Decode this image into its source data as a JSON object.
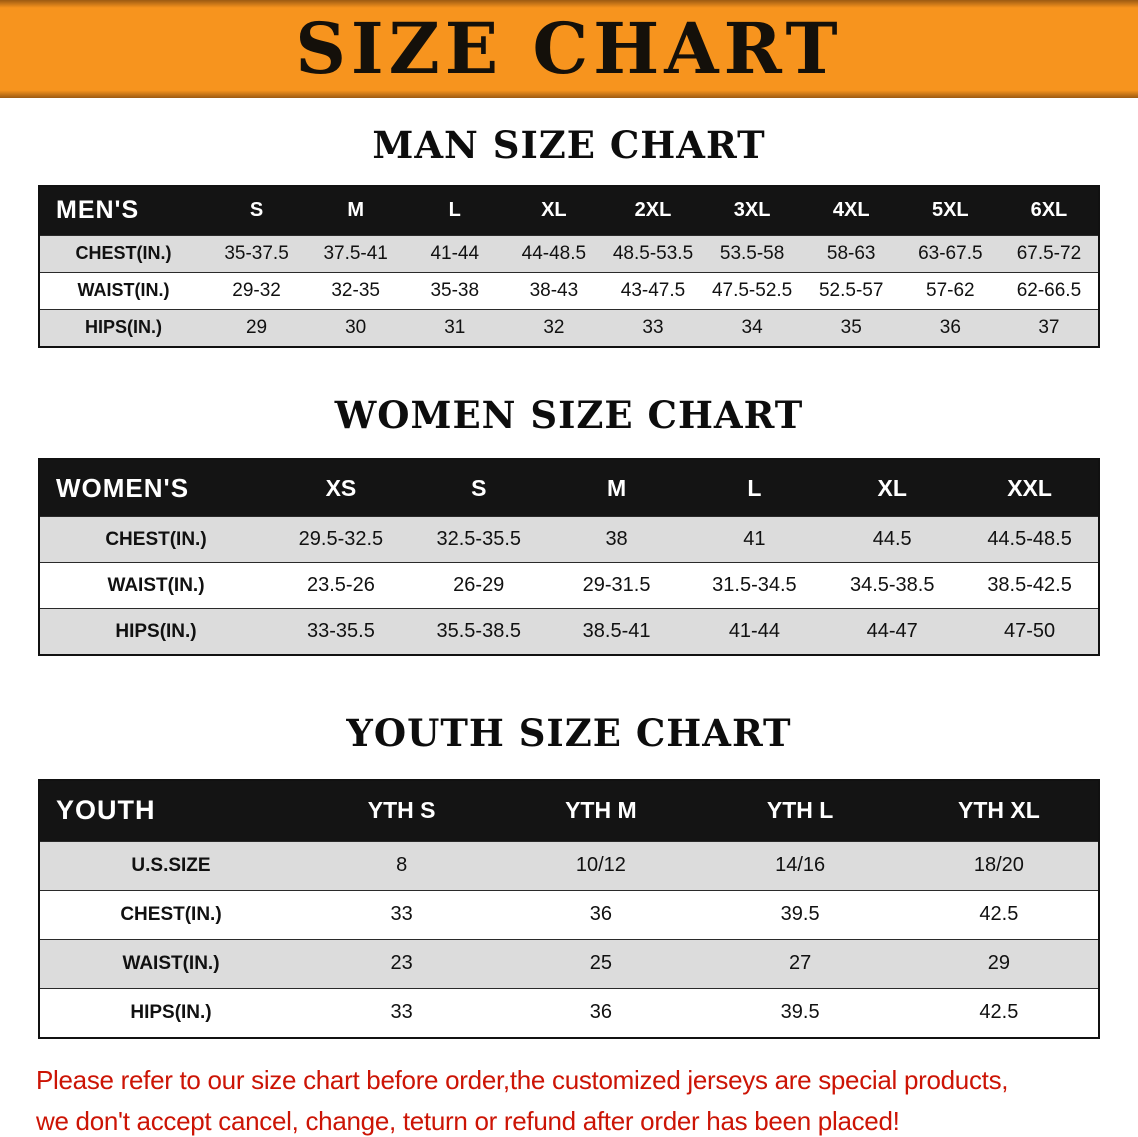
{
  "colors": {
    "banner_bg": "#f7941e",
    "banner_edge": "#9c5a12",
    "table_header_bg": "#141414",
    "table_header_text": "#ffffff",
    "row_alt_bg": "#dcdcdc",
    "note_red": "#cc1405"
  },
  "banner": {
    "title": "SIZE CHART"
  },
  "chart_data": [
    {
      "type": "table",
      "title": "MAN SIZE CHART",
      "columns": [
        "MEN'S",
        "S",
        "M",
        "L",
        "XL",
        "2XL",
        "3XL",
        "4XL",
        "5XL",
        "6XL"
      ],
      "rows": [
        [
          "CHEST(IN.)",
          "35-37.5",
          "37.5-41",
          "41-44",
          "44-48.5",
          "48.5-53.5",
          "53.5-58",
          "58-63",
          "63-67.5",
          "67.5-72"
        ],
        [
          "WAIST(IN.)",
          "29-32",
          "32-35",
          "35-38",
          "38-43",
          "43-47.5",
          "47.5-52.5",
          "52.5-57",
          "57-62",
          "62-66.5"
        ],
        [
          "HIPS(IN.)",
          "29",
          "30",
          "31",
          "32",
          "33",
          "34",
          "35",
          "36",
          "37"
        ]
      ]
    },
    {
      "type": "table",
      "title": "WOMEN SIZE CHART",
      "columns": [
        "WOMEN'S",
        "XS",
        "S",
        "M",
        "L",
        "XL",
        "XXL"
      ],
      "rows": [
        [
          "CHEST(IN.)",
          "29.5-32.5",
          "32.5-35.5",
          "38",
          "41",
          "44.5",
          "44.5-48.5"
        ],
        [
          "WAIST(IN.)",
          "23.5-26",
          "26-29",
          "29-31.5",
          "31.5-34.5",
          "34.5-38.5",
          "38.5-42.5"
        ],
        [
          "HIPS(IN.)",
          "33-35.5",
          "35.5-38.5",
          "38.5-41",
          "41-44",
          "44-47",
          "47-50"
        ]
      ]
    },
    {
      "type": "table",
      "title": "YOUTH SIZE CHART",
      "columns": [
        "YOUTH",
        "YTH S",
        "YTH M",
        "YTH L",
        "YTH XL"
      ],
      "rows": [
        [
          "U.S.SIZE",
          "8",
          "10/12",
          "14/16",
          "18/20"
        ],
        [
          "CHEST(IN.)",
          "33",
          "36",
          "39.5",
          "42.5"
        ],
        [
          "WAIST(IN.)",
          "23",
          "25",
          "27",
          "29"
        ],
        [
          "HIPS(IN.)",
          "33",
          "36",
          "39.5",
          "42.5"
        ]
      ]
    }
  ],
  "footer": {
    "line1": "Please refer to our size chart before order,the customized jerseys are special products,",
    "line2": "we don't accept cancel, change, teturn or refund after order has been placed!"
  }
}
